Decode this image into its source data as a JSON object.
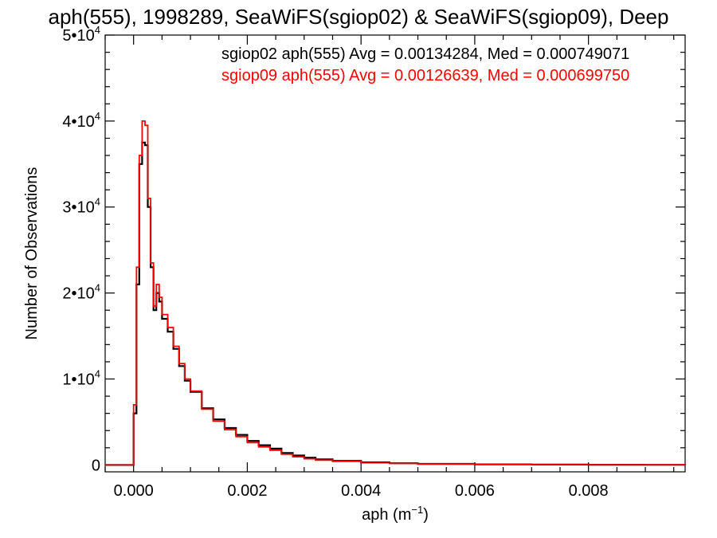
{
  "chart_data": {
    "type": "line",
    "title": "aph(555), 1998289, SeaWiFS(sgiop02) & SeaWiFS(sgiop09), Deep",
    "xlabel": "aph (m",
    "xlabel_sup": "−1",
    "xlabel_close": ")",
    "ylabel": "Number of Observations",
    "xlim": [
      -0.0005,
      0.0097
    ],
    "ylim": [
      -800,
      50000
    ],
    "x_ticks": [
      0.0,
      0.002,
      0.004,
      0.006,
      0.008
    ],
    "x_tick_labels": [
      "0.000",
      "0.002",
      "0.004",
      "0.006",
      "0.008"
    ],
    "y_ticks": [
      0,
      10000,
      20000,
      30000,
      40000,
      50000
    ],
    "y_tick_labels": [
      {
        "base": "0",
        "exp": ""
      },
      {
        "base": "1•10",
        "exp": "4"
      },
      {
        "base": "2•10",
        "exp": "4"
      },
      {
        "base": "3•10",
        "exp": "4"
      },
      {
        "base": "4•10",
        "exp": "4"
      },
      {
        "base": "5•10",
        "exp": "4"
      }
    ],
    "grid": false,
    "legend_position": "top-right",
    "series": [
      {
        "name": "sgiop02 aph(555) Avg = 0.00134284, Med = 0.000749071",
        "color": "#000000",
        "x": [
          -0.0005,
          -5e-05,
          0.0,
          5e-05,
          0.0001,
          0.00015,
          0.0002,
          0.00025,
          0.0003,
          0.00035,
          0.0004,
          0.00045,
          0.0005,
          0.0006,
          0.0007,
          0.0008,
          0.0009,
          0.001,
          0.0012,
          0.0014,
          0.0016,
          0.0018,
          0.002,
          0.0022,
          0.0024,
          0.0026,
          0.0028,
          0.003,
          0.0032,
          0.0035,
          0.004,
          0.0045,
          0.005,
          0.006,
          0.007,
          0.008,
          0.009,
          0.0097
        ],
        "y": [
          0,
          0,
          6000,
          21000,
          35000,
          37500,
          37200,
          30000,
          23000,
          18000,
          20000,
          19000,
          17000,
          15500,
          13500,
          11500,
          9800,
          8500,
          6600,
          5300,
          4300,
          3500,
          2800,
          2300,
          1900,
          1400,
          1100,
          850,
          650,
          480,
          300,
          200,
          130,
          70,
          40,
          25,
          15,
          10
        ]
      },
      {
        "name": "sgiop09 aph(555) Avg = 0.00126639, Med = 0.000699750",
        "color": "#ff0000",
        "x": [
          -0.0005,
          -5e-05,
          0.0,
          5e-05,
          0.0001,
          0.00015,
          0.0002,
          0.00025,
          0.0003,
          0.00035,
          0.0004,
          0.00045,
          0.0005,
          0.0006,
          0.0007,
          0.0008,
          0.0009,
          0.001,
          0.0012,
          0.0014,
          0.0016,
          0.0018,
          0.002,
          0.0022,
          0.0024,
          0.0026,
          0.0028,
          0.003,
          0.0032,
          0.0035,
          0.004,
          0.0045,
          0.005,
          0.006,
          0.007,
          0.008,
          0.009,
          0.0097
        ],
        "y": [
          0,
          0,
          7000,
          23000,
          36000,
          40000,
          39500,
          31000,
          23500,
          18500,
          21000,
          19500,
          17500,
          16000,
          13800,
          11800,
          10000,
          8600,
          6500,
          5100,
          4100,
          3300,
          2600,
          2100,
          1700,
          1250,
          950,
          720,
          560,
          420,
          260,
          170,
          110,
          60,
          35,
          20,
          12,
          8
        ]
      }
    ]
  }
}
